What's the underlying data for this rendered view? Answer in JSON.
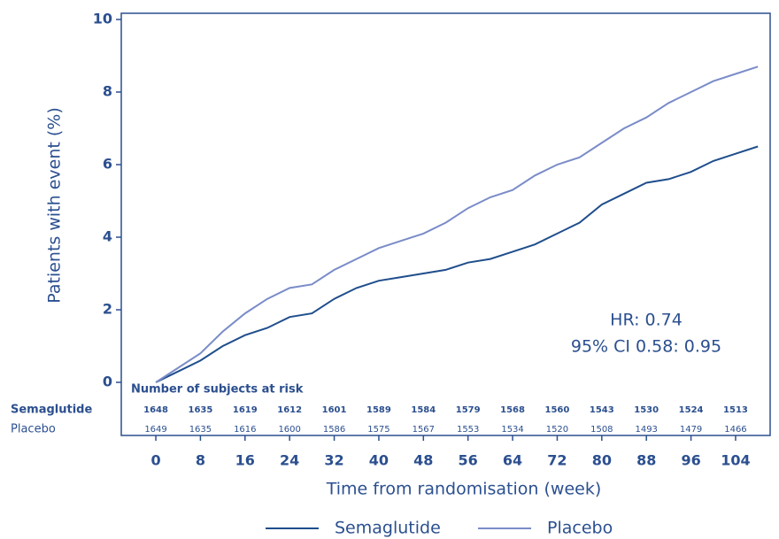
{
  "chart_data": {
    "type": "line",
    "x_label": "Time from randomisation (week)",
    "y_label": "Patients with event (%)",
    "x": [
      0,
      4,
      8,
      12,
      16,
      20,
      24,
      28,
      32,
      36,
      40,
      44,
      48,
      52,
      56,
      60,
      64,
      68,
      72,
      76,
      80,
      84,
      88,
      92,
      96,
      100,
      104,
      108
    ],
    "series": [
      {
        "name": "Semaglutide",
        "color": "#1f4e8c",
        "values": [
          0,
          0.3,
          0.6,
          1.0,
          1.3,
          1.5,
          1.8,
          1.9,
          2.3,
          2.6,
          2.8,
          2.9,
          3.0,
          3.1,
          3.3,
          3.4,
          3.6,
          3.8,
          4.1,
          4.4,
          4.9,
          5.2,
          5.5,
          5.6,
          5.8,
          6.1,
          6.3,
          6.5
        ]
      },
      {
        "name": "Placebo",
        "color": "#7a8cc8",
        "values": [
          0,
          0.4,
          0.8,
          1.4,
          1.9,
          2.3,
          2.6,
          2.7,
          3.1,
          3.4,
          3.7,
          3.9,
          4.1,
          4.4,
          4.8,
          5.1,
          5.3,
          5.7,
          6.0,
          6.2,
          6.6,
          7.0,
          7.3,
          7.7,
          8.0,
          8.3,
          8.5,
          8.7
        ]
      }
    ],
    "xlim": [
      -6.2,
      110.2
    ],
    "ylim": [
      0,
      10
    ],
    "xticks": [
      0,
      8,
      16,
      24,
      32,
      40,
      48,
      56,
      64,
      72,
      80,
      88,
      96,
      104
    ],
    "yticks": [
      0,
      2,
      4,
      6,
      8,
      10
    ],
    "annotations": [
      "HR: 0.74",
      "95% CI 0.58: 0.95"
    ],
    "risk_table": {
      "title": "Number of subjects at risk",
      "rows": [
        {
          "name": "Semaglutide",
          "values": [
            1648,
            1635,
            1619,
            1612,
            1601,
            1589,
            1584,
            1579,
            1568,
            1560,
            1543,
            1530,
            1524,
            1513
          ]
        },
        {
          "name": "Placebo",
          "values": [
            1649,
            1635,
            1616,
            1600,
            1586,
            1575,
            1567,
            1553,
            1534,
            1520,
            1508,
            1493,
            1479,
            1466
          ]
        }
      ]
    }
  }
}
